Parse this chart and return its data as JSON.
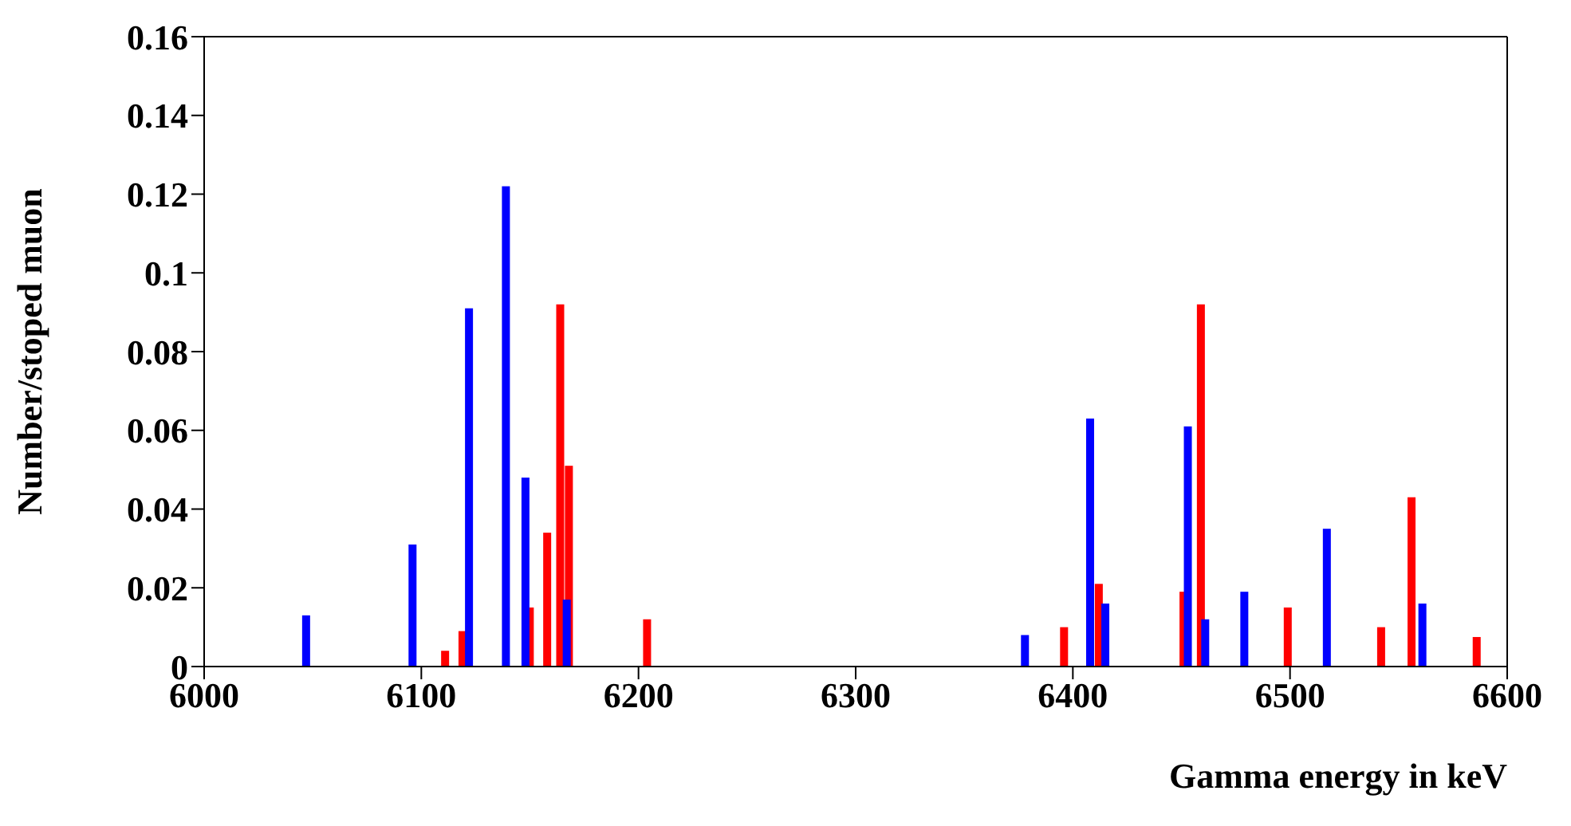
{
  "chart_data": {
    "type": "bar",
    "xlabel": "Gamma energy in keV",
    "ylabel": "Number/stoped muon",
    "xlim": [
      6000,
      6600
    ],
    "xticks": [
      6000,
      6100,
      6200,
      6300,
      6400,
      6500,
      6600
    ],
    "ylim": [
      0,
      0.16
    ],
    "yticks": [
      0,
      0.02,
      0.04,
      0.06,
      0.08,
      0.1,
      0.12,
      0.14,
      0.16
    ],
    "grid": false,
    "series": [
      {
        "color": "#ff0000",
        "x": [
          6111,
          6119,
          6150,
          6158,
          6164,
          6168,
          6204,
          6396,
          6412,
          6451,
          6459,
          6499,
          6542,
          6556,
          6586
        ],
        "values": [
          0.004,
          0.009,
          0.015,
          0.034,
          0.092,
          0.051,
          0.012,
          0.01,
          0.021,
          0.019,
          0.092,
          0.015,
          0.01,
          0.043,
          0.0075
        ]
      },
      {
        "color": "#0000ff",
        "x": [
          6047,
          6096,
          6122,
          6139,
          6148,
          6167,
          6378,
          6408,
          6415,
          6453,
          6461,
          6479,
          6517,
          6561
        ],
        "values": [
          0.013,
          0.031,
          0.091,
          0.122,
          0.048,
          0.017,
          0.008,
          0.063,
          0.016,
          0.061,
          0.012,
          0.019,
          0.035,
          0.016
        ]
      }
    ]
  }
}
